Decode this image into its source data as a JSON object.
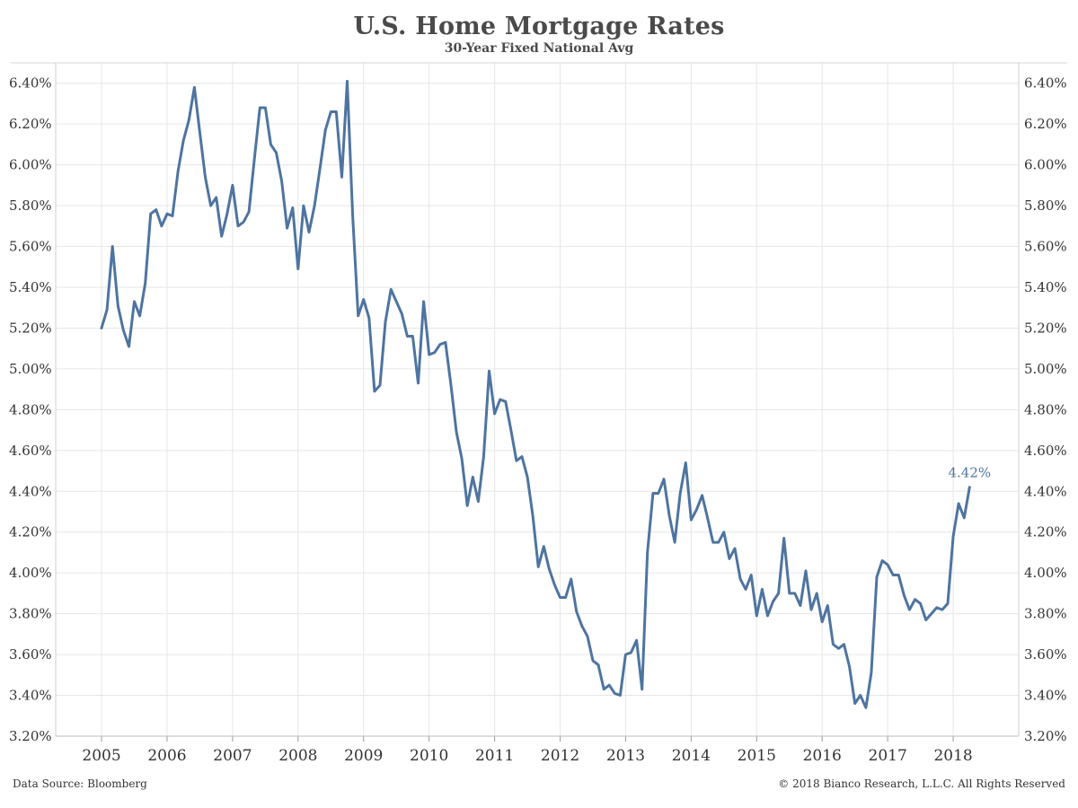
{
  "header": {
    "title": "U.S. Home Mortgage Rates",
    "subtitle": "30-Year Fixed National Avg"
  },
  "footer": {
    "source": "Data Source: Bloomberg",
    "copyright": "© 2018 Bianco Research, L.L.C. All Rights Reserved"
  },
  "colors": {
    "line": "#4e74a0",
    "grid": "#e6e6e6",
    "axis_text": "#333333",
    "annotation": "#4e74a0"
  },
  "chart_data": {
    "type": "line",
    "title": "U.S. Home Mortgage Rates",
    "subtitle": "30-Year Fixed National Avg",
    "xlabel": "",
    "ylabel": "",
    "xlim": [
      2004.3,
      2019.0
    ],
    "ylim": [
      3.2,
      6.5
    ],
    "x_ticks": [
      2005,
      2006,
      2007,
      2008,
      2009,
      2010,
      2011,
      2012,
      2013,
      2014,
      2015,
      2016,
      2017,
      2018
    ],
    "x_tick_labels": [
      "2005",
      "2006",
      "2007",
      "2008",
      "2009",
      "2010",
      "2011",
      "2012",
      "2013",
      "2014",
      "2015",
      "2016",
      "2017",
      "2018"
    ],
    "y_ticks": [
      3.2,
      3.4,
      3.6,
      3.8,
      4.0,
      4.2,
      4.4,
      4.6,
      4.8,
      5.0,
      5.2,
      5.4,
      5.6,
      5.8,
      6.0,
      6.2,
      6.4
    ],
    "y_tick_labels": [
      "3.20%",
      "3.40%",
      "3.60%",
      "3.80%",
      "4.00%",
      "4.20%",
      "4.40%",
      "4.60%",
      "4.80%",
      "5.00%",
      "5.20%",
      "5.40%",
      "5.60%",
      "5.80%",
      "6.00%",
      "6.20%",
      "6.40%"
    ],
    "grid": true,
    "dual_y_axis": true,
    "annotation": {
      "text": "4.42%",
      "x": 2018.25,
      "y": 4.42
    },
    "series": [
      {
        "name": "",
        "x": [
          2005.0,
          2005.083,
          2005.167,
          2005.25,
          2005.333,
          2005.417,
          2005.5,
          2005.583,
          2005.667,
          2005.75,
          2005.833,
          2005.917,
          2006.0,
          2006.083,
          2006.167,
          2006.25,
          2006.333,
          2006.417,
          2006.5,
          2006.583,
          2006.667,
          2006.75,
          2006.833,
          2006.917,
          2007.0,
          2007.083,
          2007.167,
          2007.25,
          2007.333,
          2007.417,
          2007.5,
          2007.583,
          2007.667,
          2007.75,
          2007.833,
          2007.917,
          2008.0,
          2008.083,
          2008.167,
          2008.25,
          2008.333,
          2008.417,
          2008.5,
          2008.583,
          2008.667,
          2008.75,
          2008.833,
          2008.917,
          2009.0,
          2009.083,
          2009.167,
          2009.25,
          2009.333,
          2009.417,
          2009.5,
          2009.583,
          2009.667,
          2009.75,
          2009.833,
          2009.917,
          2010.0,
          2010.083,
          2010.167,
          2010.25,
          2010.333,
          2010.417,
          2010.5,
          2010.583,
          2010.667,
          2010.75,
          2010.833,
          2010.917,
          2011.0,
          2011.083,
          2011.167,
          2011.25,
          2011.333,
          2011.417,
          2011.5,
          2011.583,
          2011.667,
          2011.75,
          2011.833,
          2011.917,
          2012.0,
          2012.083,
          2012.167,
          2012.25,
          2012.333,
          2012.417,
          2012.5,
          2012.583,
          2012.667,
          2012.75,
          2012.833,
          2012.917,
          2013.0,
          2013.083,
          2013.167,
          2013.25,
          2013.333,
          2013.417,
          2013.5,
          2013.583,
          2013.667,
          2013.75,
          2013.833,
          2013.917,
          2014.0,
          2014.083,
          2014.167,
          2014.25,
          2014.333,
          2014.417,
          2014.5,
          2014.583,
          2014.667,
          2014.75,
          2014.833,
          2014.917,
          2015.0,
          2015.083,
          2015.167,
          2015.25,
          2015.333,
          2015.417,
          2015.5,
          2015.583,
          2015.667,
          2015.75,
          2015.833,
          2015.917,
          2016.0,
          2016.083,
          2016.167,
          2016.25,
          2016.333,
          2016.417,
          2016.5,
          2016.583,
          2016.667,
          2016.75,
          2016.833,
          2016.917,
          2017.0,
          2017.083,
          2017.167,
          2017.25,
          2017.333,
          2017.417,
          2017.5,
          2017.583,
          2017.667,
          2017.75,
          2017.833,
          2017.917,
          2018.0,
          2018.083,
          2018.167,
          2018.25
        ],
        "values": [
          5.2,
          5.29,
          5.6,
          5.31,
          5.19,
          5.11,
          5.33,
          5.26,
          5.42,
          5.76,
          5.78,
          5.7,
          5.76,
          5.75,
          5.97,
          6.12,
          6.22,
          6.38,
          6.16,
          5.94,
          5.8,
          5.84,
          5.65,
          5.76,
          5.9,
          5.7,
          5.72,
          5.77,
          6.03,
          6.28,
          6.28,
          6.1,
          6.06,
          5.92,
          5.69,
          5.79,
          5.49,
          5.8,
          5.67,
          5.8,
          5.98,
          6.17,
          6.26,
          6.26,
          5.94,
          6.41,
          5.75,
          5.26,
          5.34,
          5.25,
          4.89,
          4.92,
          5.23,
          5.39,
          5.33,
          5.27,
          5.16,
          5.16,
          4.93,
          5.33,
          5.07,
          5.08,
          5.12,
          5.13,
          4.92,
          4.69,
          4.56,
          4.33,
          4.47,
          4.35,
          4.57,
          4.99,
          4.78,
          4.85,
          4.84,
          4.7,
          4.55,
          4.57,
          4.47,
          4.28,
          4.03,
          4.13,
          4.02,
          3.94,
          3.88,
          3.88,
          3.97,
          3.81,
          3.74,
          3.69,
          3.57,
          3.55,
          3.43,
          3.45,
          3.41,
          3.4,
          3.6,
          3.61,
          3.67,
          3.43,
          4.1,
          4.39,
          4.39,
          4.46,
          4.28,
          4.15,
          4.39,
          4.54,
          4.26,
          4.31,
          4.38,
          4.27,
          4.15,
          4.15,
          4.2,
          4.07,
          4.12,
          3.97,
          3.92,
          3.99,
          3.79,
          3.92,
          3.79,
          3.86,
          3.9,
          4.17,
          3.9,
          3.9,
          3.84,
          4.01,
          3.82,
          3.9,
          3.76,
          3.84,
          3.65,
          3.63,
          3.65,
          3.54,
          3.36,
          3.4,
          3.34,
          3.51,
          3.98,
          4.06,
          4.04,
          3.99,
          3.99,
          3.89,
          3.82,
          3.87,
          3.85,
          3.77,
          3.8,
          3.83,
          3.82,
          3.85,
          4.18,
          4.34,
          4.27,
          4.42
        ]
      }
    ]
  }
}
